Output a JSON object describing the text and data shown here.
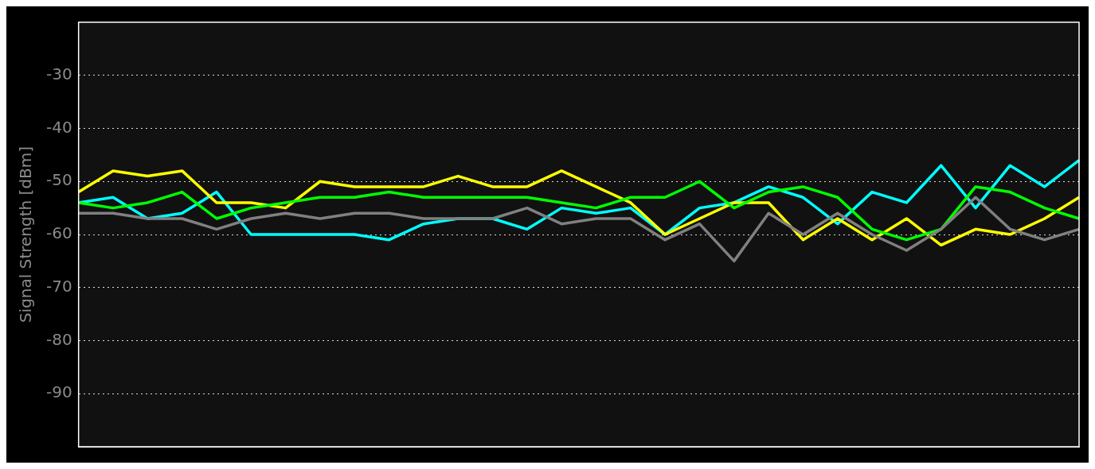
{
  "chart_data": {
    "type": "line",
    "ylabel": "Signal Strength [dBm]",
    "categories": [
      null,
      null,
      null,
      null,
      null,
      null,
      null,
      null,
      null,
      null,
      null,
      null,
      null,
      null,
      null,
      null,
      null,
      null,
      null,
      null,
      null,
      null,
      null,
      null,
      null,
      null,
      null,
      null,
      null,
      null
    ],
    "series": [
      {
        "color": "#808080",
        "values": [
          -56,
          -56,
          -57,
          -57,
          -59,
          -57,
          -56,
          -57,
          -56,
          -56,
          -57,
          -57,
          -57,
          -55,
          -58,
          -57,
          -57,
          -61,
          -58,
          -65,
          -56,
          -60,
          -56,
          -60,
          -63,
          -59,
          -53,
          -59,
          -61,
          -59
        ]
      },
      {
        "color": "#00ff00",
        "values": [
          -54,
          -55,
          -54,
          -52,
          -57,
          -55,
          -54,
          -53,
          -53,
          -52,
          -53,
          -53,
          -53,
          -53,
          -54,
          -55,
          -53,
          -53,
          -50,
          -55,
          -52,
          -51,
          -53,
          -59,
          -61,
          -59,
          -51,
          -52,
          -55,
          -57
        ]
      },
      {
        "color": "#ffff00",
        "values": [
          -52,
          -48,
          -49,
          -48,
          -54,
          -54,
          -55,
          -50,
          -51,
          -51,
          -51,
          -49,
          -51,
          -51,
          -48,
          -51,
          -54,
          -60,
          -57,
          -54,
          -54,
          -61,
          -57,
          -61,
          -57,
          -62,
          -59,
          -60,
          -57,
          -53
        ]
      },
      {
        "color": "#00ffff",
        "values": [
          -54,
          -53,
          -57,
          -56,
          -52,
          -60,
          -60,
          -60,
          -60,
          -61,
          -58,
          -57,
          -57,
          -59,
          -55,
          -56,
          -55,
          -60,
          -55,
          -54,
          -51,
          -53,
          -58,
          -52,
          -54,
          -47,
          -55,
          -47,
          -51,
          -46
        ]
      }
    ],
    "ylim": [
      -100,
      -20
    ],
    "yticks": [
      -30,
      -40,
      -50,
      -60,
      -70,
      -80,
      -90
    ],
    "grid": "y",
    "legend": false,
    "marker": "none",
    "line_style": "solid"
  }
}
